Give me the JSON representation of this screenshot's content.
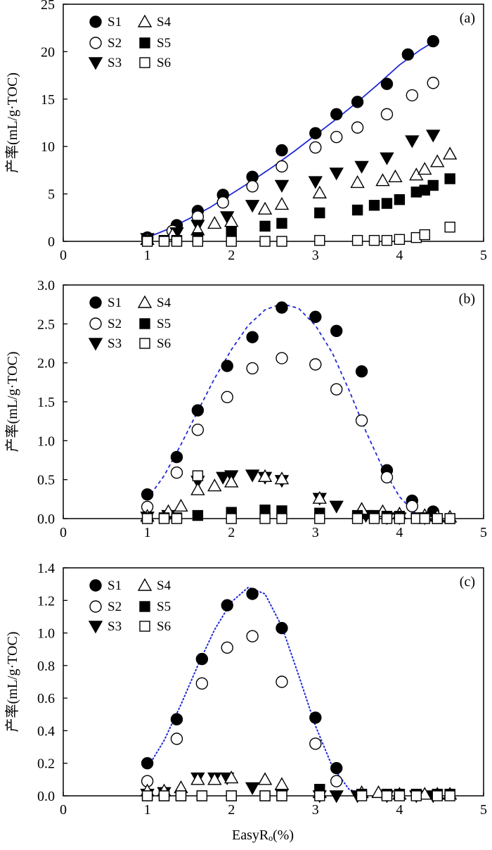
{
  "chart_data": [
    {
      "type": "scatter",
      "panel_label": "(a)",
      "ylabel": "产率(mL/g·TOC)",
      "xlabel": "",
      "xlim": [
        0,
        5
      ],
      "ylim": [
        0,
        25
      ],
      "xticks": [
        "0",
        "1",
        "2",
        "3",
        "4",
        "5"
      ],
      "yticks": [
        "0",
        "5",
        "10",
        "15",
        "20",
        "25"
      ],
      "legend": {
        "position": "top-left",
        "entries": [
          "S1",
          "S2",
          "S3",
          "S4",
          "S5",
          "S6"
        ]
      },
      "series": [
        {
          "name": "S1",
          "marker": "filled-circle",
          "x": [
            1.0,
            1.35,
            1.6,
            1.9,
            2.25,
            2.6,
            3.0,
            3.25,
            3.5,
            3.85,
            4.1,
            4.4
          ],
          "y": [
            0.4,
            1.7,
            3.2,
            4.9,
            6.8,
            9.6,
            11.4,
            13.4,
            14.7,
            16.6,
            19.7,
            21.1
          ]
        },
        {
          "name": "S2",
          "marker": "open-circle",
          "x": [
            1.0,
            1.3,
            1.6,
            1.9,
            2.25,
            2.6,
            3.0,
            3.25,
            3.5,
            3.85,
            4.15,
            4.4
          ],
          "y": [
            0.3,
            1.1,
            2.6,
            4.1,
            5.8,
            7.9,
            9.9,
            11.0,
            12.0,
            13.4,
            15.4,
            16.7
          ]
        },
        {
          "name": "S3",
          "marker": "filled-triangle-down",
          "x": [
            1.0,
            1.35,
            1.6,
            1.95,
            2.25,
            2.6,
            3.0,
            3.25,
            3.55,
            3.85,
            4.15,
            4.4
          ],
          "y": [
            0.3,
            0.9,
            1.7,
            2.6,
            3.8,
            5.9,
            6.3,
            7.2,
            7.9,
            8.8,
            10.6,
            11.2
          ]
        },
        {
          "name": "S4",
          "marker": "open-triangle-up",
          "x": [
            1.0,
            1.3,
            1.6,
            1.8,
            2.0,
            2.4,
            2.6,
            3.05,
            3.5,
            3.8,
            3.95,
            4.2,
            4.3,
            4.45,
            4.6
          ],
          "y": [
            0.2,
            0.7,
            1.2,
            1.9,
            2.1,
            3.4,
            3.9,
            5.1,
            6.2,
            6.4,
            6.8,
            7.0,
            7.6,
            8.4,
            9.2
          ]
        },
        {
          "name": "S5",
          "marker": "filled-square",
          "x": [
            1.0,
            1.2,
            1.35,
            1.6,
            2.0,
            2.4,
            2.6,
            3.05,
            3.5,
            3.7,
            3.85,
            4.0,
            4.2,
            4.3,
            4.4,
            4.6
          ],
          "y": [
            0.1,
            0.1,
            0.1,
            0.4,
            1.0,
            1.6,
            1.9,
            3.0,
            3.3,
            3.8,
            4.0,
            4.4,
            5.2,
            5.4,
            5.9,
            6.6
          ]
        },
        {
          "name": "S6",
          "marker": "open-square",
          "x": [
            1.0,
            1.2,
            1.35,
            1.6,
            2.0,
            2.4,
            2.6,
            3.05,
            3.5,
            3.7,
            3.85,
            4.0,
            4.2,
            4.3,
            4.6
          ],
          "y": [
            0.0,
            0.0,
            0.0,
            0.0,
            0.0,
            0.0,
            0.0,
            0.1,
            0.1,
            0.1,
            0.1,
            0.2,
            0.4,
            0.7,
            1.5
          ]
        }
      ],
      "fit_curves": [
        {
          "series": "S1",
          "style": "solid",
          "color": "#1f2ad6",
          "x": [
            1.0,
            1.25,
            1.5,
            1.75,
            2.0,
            2.25,
            2.5,
            2.75,
            3.0,
            3.25,
            3.5,
            3.75,
            4.0,
            4.25,
            4.4
          ],
          "y": [
            0.4,
            1.3,
            2.4,
            3.6,
            5.0,
            6.4,
            7.9,
            9.5,
            11.2,
            12.9,
            14.7,
            16.6,
            18.6,
            20.2,
            21.0
          ]
        }
      ]
    },
    {
      "type": "scatter",
      "panel_label": "(b)",
      "ylabel": "产率(mL/g·TOC)",
      "xlabel": "",
      "xlim": [
        0,
        5
      ],
      "ylim": [
        0,
        3.0
      ],
      "xticks": [
        "0",
        "1",
        "2",
        "3",
        "4",
        "5"
      ],
      "yticks": [
        "0.0",
        "0.5",
        "1.0",
        "1.5",
        "2.0",
        "2.5",
        "3.0"
      ],
      "legend": {
        "position": "top-left",
        "entries": [
          "S1",
          "S2",
          "S3",
          "S4",
          "S5",
          "S6"
        ]
      },
      "series": [
        {
          "name": "S1",
          "marker": "filled-circle",
          "x": [
            1.0,
            1.35,
            1.6,
            1.95,
            2.25,
            2.6,
            3.0,
            3.25,
            3.55,
            3.85,
            4.15,
            4.4
          ],
          "y": [
            0.31,
            0.79,
            1.39,
            1.96,
            2.33,
            2.71,
            2.59,
            2.41,
            1.89,
            0.62,
            0.23,
            0.09
          ]
        },
        {
          "name": "S2",
          "marker": "open-circle",
          "x": [
            1.0,
            1.35,
            1.6,
            1.95,
            2.25,
            2.6,
            3.0,
            3.25,
            3.55,
            3.85,
            4.15
          ],
          "y": [
            0.15,
            0.59,
            1.14,
            1.56,
            1.93,
            2.06,
            1.98,
            1.66,
            1.26,
            0.53,
            0.16
          ]
        },
        {
          "name": "S3",
          "marker": "filled-triangle-down",
          "x": [
            1.0,
            1.25,
            1.6,
            1.9,
            2.0,
            2.25,
            2.4,
            2.6,
            3.05,
            3.25,
            3.6,
            3.85,
            4.0,
            4.3
          ],
          "y": [
            0.02,
            0.04,
            0.48,
            0.53,
            0.55,
            0.56,
            0.53,
            0.49,
            0.26,
            0.16,
            0.04,
            0.01,
            0.01,
            0.01
          ]
        },
        {
          "name": "S4",
          "marker": "open-triangle-up",
          "x": [
            1.0,
            1.25,
            1.4,
            1.6,
            1.8,
            2.0,
            2.4,
            2.6,
            3.05,
            3.55,
            3.8,
            4.0,
            4.3,
            4.45,
            4.6
          ],
          "y": [
            0.03,
            0.09,
            0.16,
            0.37,
            0.42,
            0.47,
            0.54,
            0.51,
            0.26,
            0.12,
            0.09,
            0.06,
            0.04,
            0.03,
            0.02
          ]
        },
        {
          "name": "S5",
          "marker": "filled-square",
          "x": [
            1.0,
            1.2,
            1.35,
            1.6,
            2.0,
            2.4,
            2.6,
            3.05,
            3.5,
            3.7,
            3.85,
            4.0,
            4.2,
            4.3,
            4.45,
            4.6
          ],
          "y": [
            0.01,
            0.01,
            0.01,
            0.04,
            0.08,
            0.11,
            0.1,
            0.07,
            0.04,
            0.04,
            0.03,
            0.03,
            0.01,
            0.01,
            0.0,
            0.0
          ]
        },
        {
          "name": "S6",
          "marker": "open-square",
          "x": [
            1.0,
            1.2,
            1.35,
            1.6,
            2.0,
            2.4,
            2.6,
            3.05,
            3.5,
            3.7,
            3.85,
            4.0,
            4.2,
            4.3,
            4.45,
            4.6
          ],
          "y": [
            0.0,
            0.0,
            0.0,
            0.55,
            0.0,
            0.0,
            0.0,
            0.0,
            0.0,
            0.0,
            0.0,
            0.0,
            0.0,
            0.0,
            0.0,
            0.0
          ]
        }
      ],
      "fit_curves": [
        {
          "series": "S1",
          "style": "dashed",
          "color": "#1f2ad6",
          "x": [
            1.0,
            1.2,
            1.4,
            1.6,
            1.8,
            2.0,
            2.2,
            2.4,
            2.6,
            2.8,
            3.0,
            3.2,
            3.4,
            3.6,
            3.8,
            4.0,
            4.2,
            4.35
          ],
          "y": [
            0.25,
            0.55,
            0.95,
            1.38,
            1.8,
            2.17,
            2.48,
            2.68,
            2.76,
            2.7,
            2.48,
            2.13,
            1.65,
            1.12,
            0.65,
            0.28,
            0.06,
            0.0
          ]
        }
      ]
    },
    {
      "type": "scatter",
      "panel_label": "(c)",
      "ylabel": "产率(mL/g·TOC)",
      "xlabel": "EasyRₒ(%)",
      "xlim": [
        0,
        5
      ],
      "ylim": [
        0,
        1.4
      ],
      "xticks": [
        "0",
        "1",
        "2",
        "3",
        "4",
        "5"
      ],
      "yticks": [
        "0.0",
        "0.2",
        "0.4",
        "0.6",
        "0.8",
        "1.0",
        "1.2",
        "1.4"
      ],
      "legend": {
        "position": "top-left",
        "entries": [
          "S1",
          "S2",
          "S3",
          "S4",
          "S5",
          "S6"
        ]
      },
      "series": [
        {
          "name": "S1",
          "marker": "filled-circle",
          "x": [
            1.0,
            1.35,
            1.65,
            1.95,
            2.25,
            2.6,
            3.0,
            3.25
          ],
          "y": [
            0.2,
            0.47,
            0.84,
            1.17,
            1.24,
            1.03,
            0.48,
            0.17
          ]
        },
        {
          "name": "S2",
          "marker": "open-circle",
          "x": [
            1.0,
            1.35,
            1.65,
            1.95,
            2.25,
            2.6,
            3.0,
            3.25
          ],
          "y": [
            0.09,
            0.35,
            0.69,
            0.91,
            0.98,
            0.7,
            0.32,
            0.09
          ]
        },
        {
          "name": "S3",
          "marker": "filled-triangle-down",
          "x": [
            1.0,
            1.2,
            1.6,
            1.8,
            1.95,
            2.25,
            2.6,
            3.05,
            3.25,
            3.5,
            3.85,
            4.2,
            4.4
          ],
          "y": [
            0.01,
            0.02,
            0.11,
            0.11,
            0.11,
            0.05,
            0.01,
            0.0,
            0.0,
            0.0,
            0.0,
            0.0,
            0.0
          ]
        },
        {
          "name": "S4",
          "marker": "open-triangle-up",
          "x": [
            1.0,
            1.2,
            1.4,
            1.6,
            1.8,
            2.0,
            2.4,
            2.6,
            3.05,
            3.55,
            3.75,
            4.0,
            4.3,
            4.45,
            4.6
          ],
          "y": [
            0.03,
            0.03,
            0.05,
            0.1,
            0.1,
            0.11,
            0.1,
            0.07,
            0.02,
            0.02,
            0.02,
            0.01,
            0.01,
            0.01,
            0.01
          ]
        },
        {
          "name": "S5",
          "marker": "filled-square",
          "x": [
            1.0,
            1.2,
            1.4,
            1.65,
            2.0,
            2.4,
            2.6,
            3.05,
            3.55,
            3.85,
            4.0,
            4.2,
            4.45,
            4.6
          ],
          "y": [
            0.0,
            0.0,
            0.0,
            0.0,
            0.0,
            0.0,
            0.0,
            0.04,
            0.01,
            0.01,
            0.01,
            0.01,
            0.01,
            0.01
          ]
        },
        {
          "name": "S6",
          "marker": "open-square",
          "x": [
            1.0,
            1.2,
            1.4,
            1.65,
            2.0,
            2.4,
            2.6,
            3.05,
            3.55,
            3.85,
            4.0,
            4.2,
            4.45,
            4.6
          ],
          "y": [
            0.0,
            0.0,
            0.0,
            0.0,
            0.0,
            0.0,
            0.0,
            0.0,
            0.0,
            0.0,
            0.0,
            0.0,
            0.0,
            0.0
          ]
        }
      ],
      "fit_curves": [
        {
          "series": "S1",
          "style": "dotted",
          "color": "#1f2ad6",
          "x": [
            1.0,
            1.2,
            1.4,
            1.6,
            1.8,
            2.0,
            2.2,
            2.4,
            2.6,
            2.8,
            3.0,
            3.2,
            3.4,
            3.6
          ],
          "y": [
            0.17,
            0.34,
            0.56,
            0.8,
            1.02,
            1.19,
            1.28,
            1.24,
            1.04,
            0.74,
            0.43,
            0.18,
            0.04,
            0.0
          ]
        }
      ]
    }
  ]
}
